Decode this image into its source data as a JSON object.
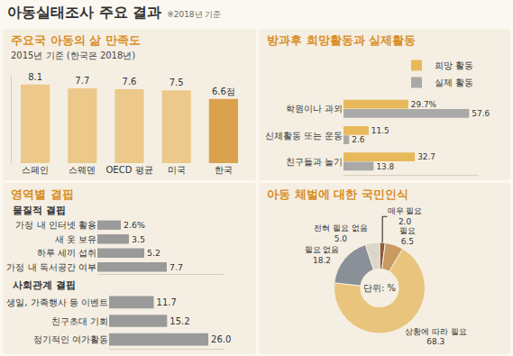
{
  "header": {
    "title": "아동실태조사 주요 결과",
    "note": "※2018년 기준"
  },
  "chart_data": [
    {
      "type": "bar",
      "title": "주요국 아동의 삶 만족도",
      "subtitle": "2015년 기준 (한국은 2018년)",
      "categories": [
        "스페인",
        "스웨덴",
        "OECD 평균",
        "미국",
        "한국"
      ],
      "values": [
        8.1,
        7.7,
        7.6,
        7.5,
        6.6
      ],
      "value_labels": [
        "8.1",
        "7.7",
        "7.6",
        "7.5",
        "6.6점"
      ],
      "colors": [
        "#ecc98a",
        "#ecc98a",
        "#ecc98a",
        "#ecc98a",
        "#dba24e"
      ],
      "ylim": [
        0,
        9
      ],
      "data_labels": true,
      "tick_labels": "x",
      "grid": false
    },
    {
      "type": "bar",
      "title": "방과후 희망활동과 실제활동",
      "orientation": "horizontal",
      "categories": [
        "학원이나 과외",
        "신체활동 또는 운동",
        "친구들과 놀기"
      ],
      "series": [
        {
          "name": "희망 활동",
          "color": "#e8b95a",
          "values": [
            29.7,
            11.5,
            32.7
          ],
          "value_labels": [
            "29.7%",
            "11.5",
            "32.7"
          ]
        },
        {
          "name": "실제 활동",
          "color": "#a9a9a9",
          "values": [
            57.6,
            2.6,
            13.8
          ]
        }
      ],
      "xlim": [
        0,
        62
      ],
      "data_labels": true,
      "tick_labels": "y",
      "legend": "top",
      "grid": false
    },
    {
      "type": "bar",
      "title": "영역별 결핍",
      "subtitle": "물질적 결핍",
      "orientation": "horizontal",
      "categories": [
        "가정 내 인터넷 활용",
        "새 옷 보유",
        "하루 세끼 섭취",
        "가정 내 독서공간 여부"
      ],
      "values": [
        2.6,
        3.5,
        5.2,
        7.7
      ],
      "value_labels": [
        "2.6%",
        "3.5",
        "5.2",
        "7.7"
      ],
      "color": "#9a9a9a",
      "xlim": [
        0,
        14
      ],
      "data_labels": true,
      "tick_labels": "y",
      "grid": false
    },
    {
      "type": "bar",
      "subtitle": "사회관계 결핍",
      "orientation": "horizontal",
      "categories": [
        "생일, 가족행사 등 이벤트",
        "친구초대 기회",
        "정기적인 여가활동"
      ],
      "values": [
        11.7,
        15.2,
        26.0
      ],
      "value_labels": [
        "11.7",
        "15.2",
        "26.0"
      ],
      "color": "#9a9a9a",
      "xlim": [
        0,
        30
      ],
      "data_labels": true,
      "tick_labels": "y",
      "grid": false
    },
    {
      "type": "pie",
      "title": "아동 체벌에 대한 국민인식",
      "categories": [
        "매우 필요",
        "필요",
        "상황에 따라 필요",
        "필요 없음",
        "전혀 필요 없음"
      ],
      "values": [
        2.0,
        6.5,
        68.3,
        18.2,
        5.0
      ],
      "value_labels": [
        "2.0",
        "6.5",
        "68.3",
        "18.2",
        "5.0"
      ],
      "colors": [
        "#8b5a3c",
        "#c99a62",
        "#e9c47c",
        "#8a9098",
        "#dcd6c9"
      ],
      "annotations": [
        "단위: %"
      ],
      "data_labels": true
    }
  ]
}
